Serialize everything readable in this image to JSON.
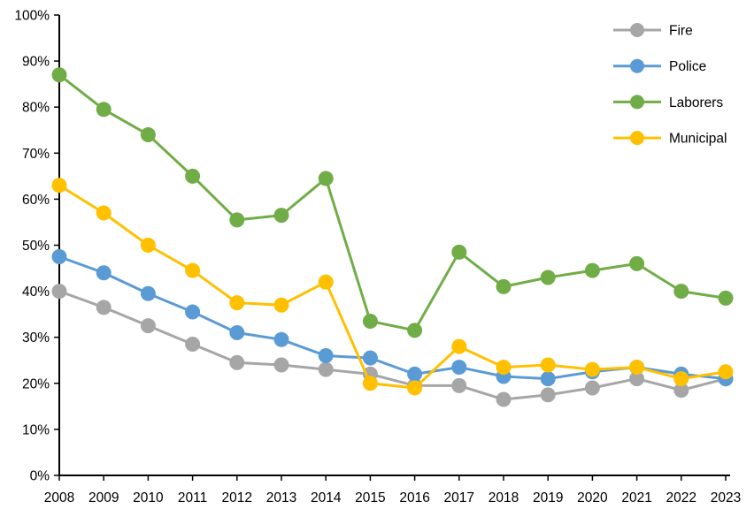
{
  "chart_data": {
    "type": "line",
    "title": "",
    "x_labels": [
      "2008",
      "2009",
      "2010",
      "2011",
      "2012",
      "2013",
      "2014",
      "2015",
      "2016",
      "2017",
      "2018",
      "2019",
      "2020",
      "2021",
      "2022",
      "2023"
    ],
    "y_tick_labels": [
      "0%",
      "10%",
      "20%",
      "30%",
      "40%",
      "50%",
      "60%",
      "70%",
      "80%",
      "90%",
      "100%"
    ],
    "ylim": [
      0,
      100
    ],
    "ytick_step": 10,
    "grid": false,
    "legend_position": "top-right",
    "background_color": "#FFFFFF",
    "axis_color": "#000000",
    "series": [
      {
        "name": "Fire",
        "color": "#A6A6A6",
        "values": [
          40,
          36.5,
          32.5,
          28.5,
          24.5,
          24,
          23,
          22,
          19.5,
          19.5,
          16.5,
          17.5,
          19,
          21,
          18.5,
          21
        ]
      },
      {
        "name": "Police",
        "color": "#5B9BD5",
        "values": [
          47.5,
          44,
          39.5,
          35.5,
          31,
          29.5,
          26,
          25.5,
          22,
          23.5,
          21.5,
          21,
          22.5,
          23.5,
          22,
          21
        ]
      },
      {
        "name": "Laborers",
        "color": "#70AD47",
        "values": [
          87,
          79.5,
          74,
          65,
          55.5,
          56.5,
          64.5,
          33.5,
          31.5,
          48.5,
          41,
          43,
          44.5,
          46,
          40,
          38.5
        ]
      },
      {
        "name": "Municipal",
        "color": "#FFC000",
        "values": [
          63,
          57,
          50,
          44.5,
          37.5,
          37,
          42,
          20,
          19,
          28,
          23.5,
          24,
          23,
          23.5,
          21,
          22.5
        ]
      }
    ]
  }
}
